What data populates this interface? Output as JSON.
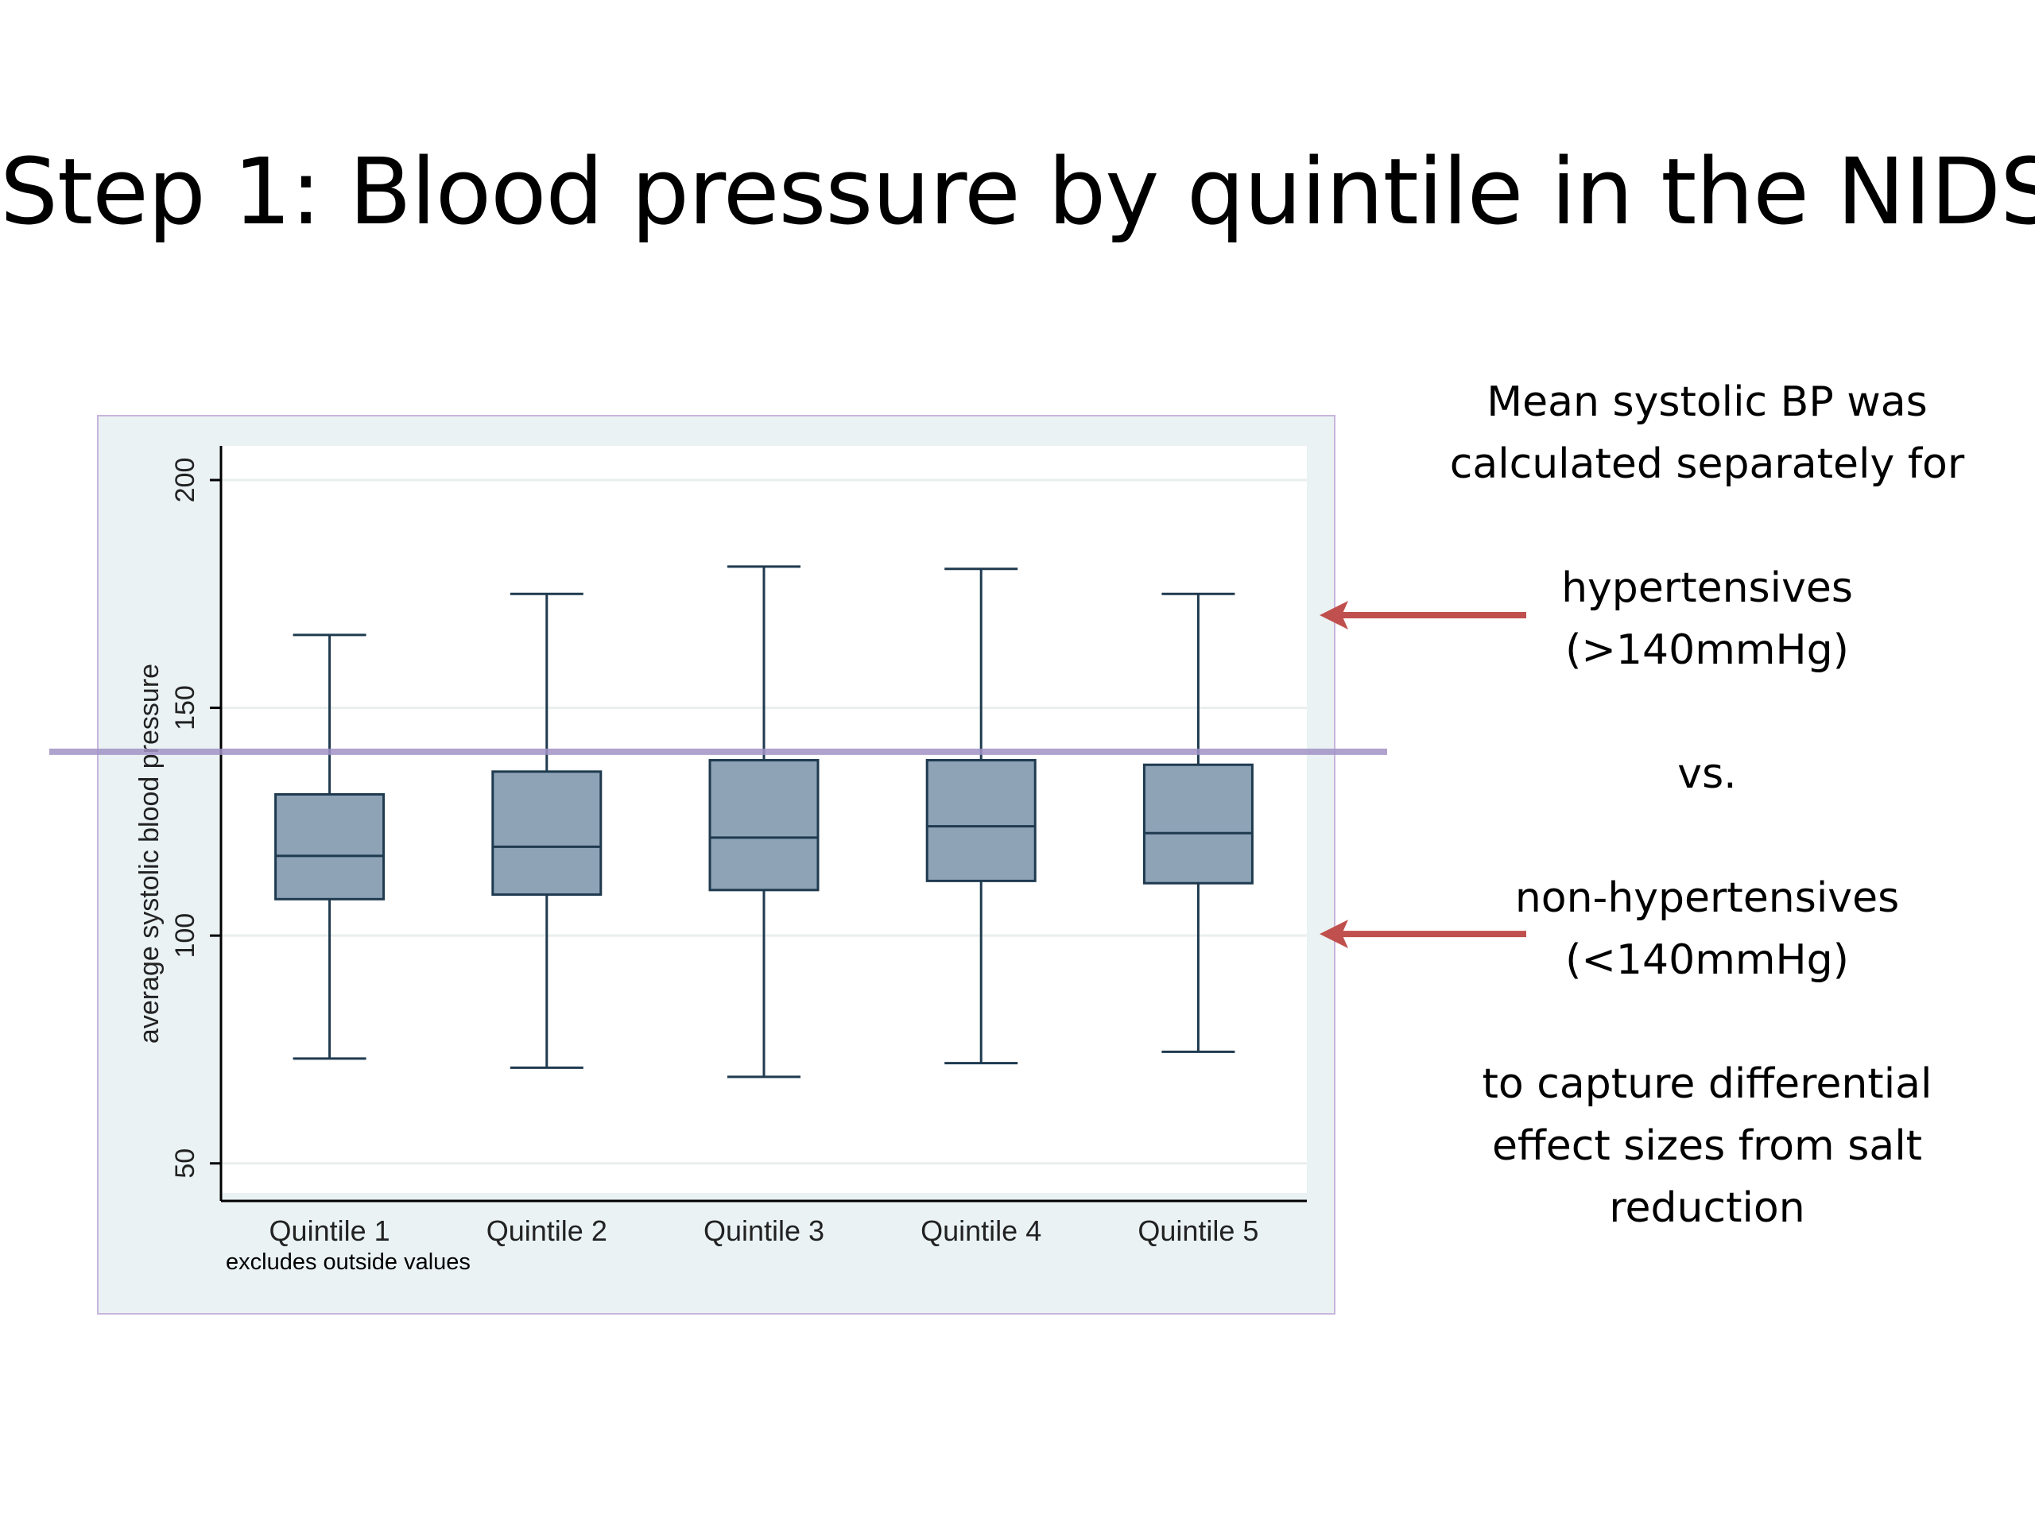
{
  "slide": {
    "title": "Step 1: Blood pressure by quintile in the NIDS"
  },
  "notes": {
    "line1": "Mean systolic BP was",
    "line2": "calculated separately for",
    "line3": "hypertensives",
    "line4": "(>140mmHg)",
    "line5": "vs.",
    "line6": "non-hypertensives",
    "line7": "(<140mmHg)",
    "line8": "to capture differential",
    "line9": "effect sizes from salt",
    "line10": "reduction"
  },
  "colors": {
    "box_fill": "#8ea3b6",
    "box_stroke": "#1f3a4f",
    "plot_background": "#ffffff",
    "frame_background": "#eaf2f3",
    "threshold_line": "#a193c6",
    "arrow": "#c0504d"
  },
  "chart_data": {
    "type": "box",
    "categories": [
      "Quintile 1",
      "Quintile 2",
      "Quintile 3",
      "Quintile 4",
      "Quintile 5"
    ],
    "boxes": [
      {
        "whisker_low": 73,
        "q1": 108,
        "median": 117.5,
        "q3": 131,
        "whisker_high": 166
      },
      {
        "whisker_low": 71,
        "q1": 109,
        "median": 119.5,
        "q3": 136,
        "whisker_high": 175
      },
      {
        "whisker_low": 69,
        "q1": 110,
        "median": 121.5,
        "q3": 138.5,
        "whisker_high": 181
      },
      {
        "whisker_low": 72,
        "q1": 112,
        "median": 124,
        "q3": 138.5,
        "whisker_high": 180.5
      },
      {
        "whisker_low": 74.5,
        "q1": 111.5,
        "median": 122.5,
        "q3": 137.5,
        "whisker_high": 175
      }
    ],
    "ylabel": "average systolic blood pressure",
    "ylim": [
      43.5,
      207.5
    ],
    "yticks": [
      50,
      100,
      150,
      200
    ],
    "note": "excludes outside values",
    "grid": true,
    "reference_line": 140,
    "arrow_values": [
      170,
      100
    ]
  }
}
